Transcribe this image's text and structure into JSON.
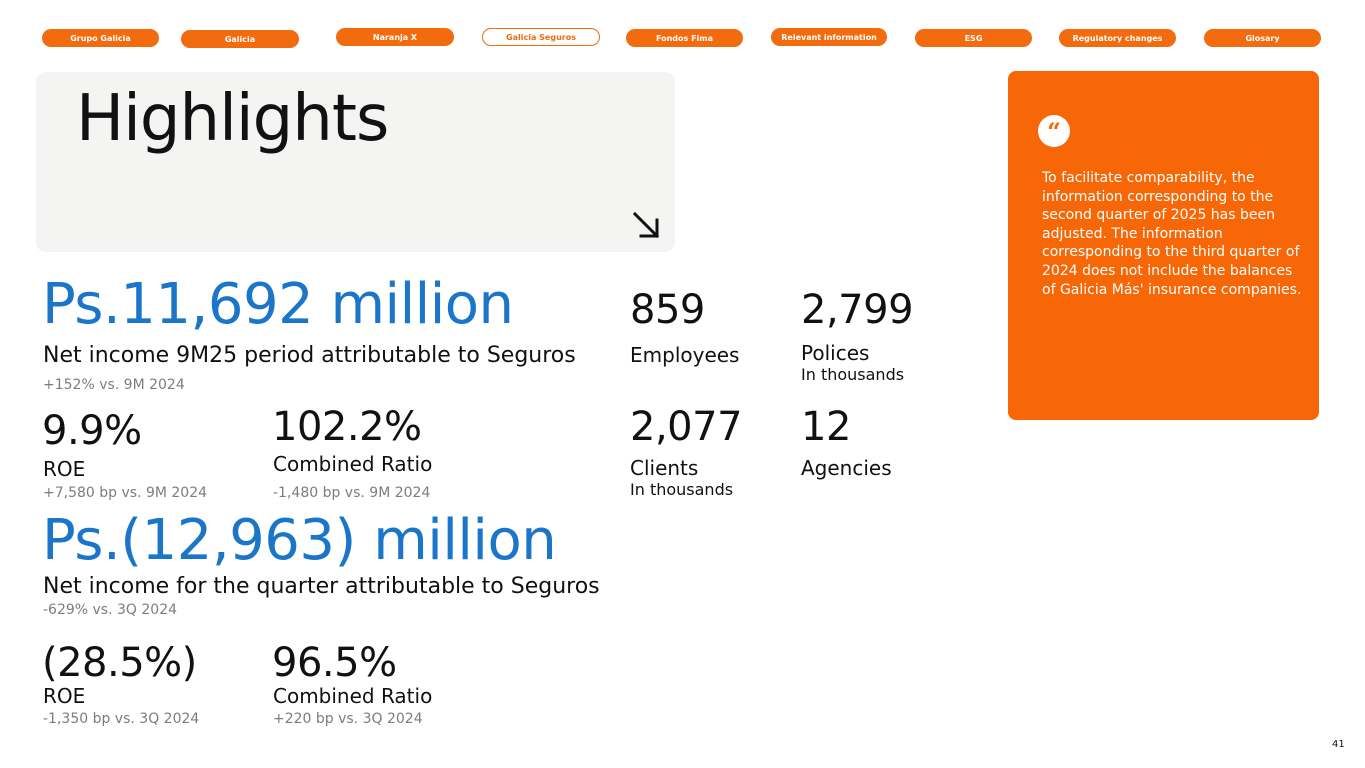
{
  "nav": {
    "items": [
      {
        "label": "Grupo Galicia"
      },
      {
        "label": "Galicia"
      },
      {
        "label": "Naranja X"
      },
      {
        "label": "Galicia Seguros"
      },
      {
        "label": "Fondos Fima"
      },
      {
        "label": "Relevant information"
      },
      {
        "label": "ESG"
      },
      {
        "label": "Regulatory changes"
      },
      {
        "label": "Glosary"
      }
    ],
    "active": "Galicia Seguros"
  },
  "title": "Highlights",
  "icons": {
    "arrow": "arrow-down-right-icon",
    "quote": "quote-icon"
  },
  "colors": {
    "accent": "#f76707",
    "nav_pill": "#f26b0f",
    "highlight_blue": "#1b75c9",
    "card_bg": "#f4f4f3"
  },
  "period_9m": {
    "net_income": {
      "value": "Ps.11,692 million",
      "label": "Net income 9M25 period attributable to Seguros",
      "comparison": "+152% vs. 9M 2024"
    },
    "roe": {
      "value": "9.9%",
      "label": "ROE",
      "comparison": "+7,580 bp vs. 9M 2024"
    },
    "combined_ratio": {
      "value": "102.2%",
      "label": "Combined Ratio",
      "comparison": "-1,480 bp vs. 9M 2024"
    }
  },
  "quarter": {
    "net_income": {
      "value": "Ps.(12,963) million",
      "label": "Net income for the quarter attributable to Seguros",
      "comparison": "-629% vs. 3Q 2024"
    },
    "roe": {
      "value": "(28.5%)",
      "label": "ROE",
      "comparison": "-1,350 bp vs. 3Q 2024"
    },
    "combined_ratio": {
      "value": "96.5%",
      "label": "Combined Ratio",
      "comparison": "+220 bp vs. 3Q 2024"
    }
  },
  "stats": {
    "employees": {
      "value": "859",
      "label": "Employees"
    },
    "polices": {
      "value": "2,799",
      "label": "Polices",
      "unit": "In thousands"
    },
    "clients": {
      "value": "2,077",
      "label": "Clients",
      "unit": "In thousands"
    },
    "agencies": {
      "value": "12",
      "label": "Agencies"
    }
  },
  "note": "To facilitate comparability, the information corresponding to the second quarter of 2025 has been adjusted. The information corresponding to the third quarter of 2024 does not include the balances of Galicia Más' insurance companies.",
  "page_number": "41"
}
